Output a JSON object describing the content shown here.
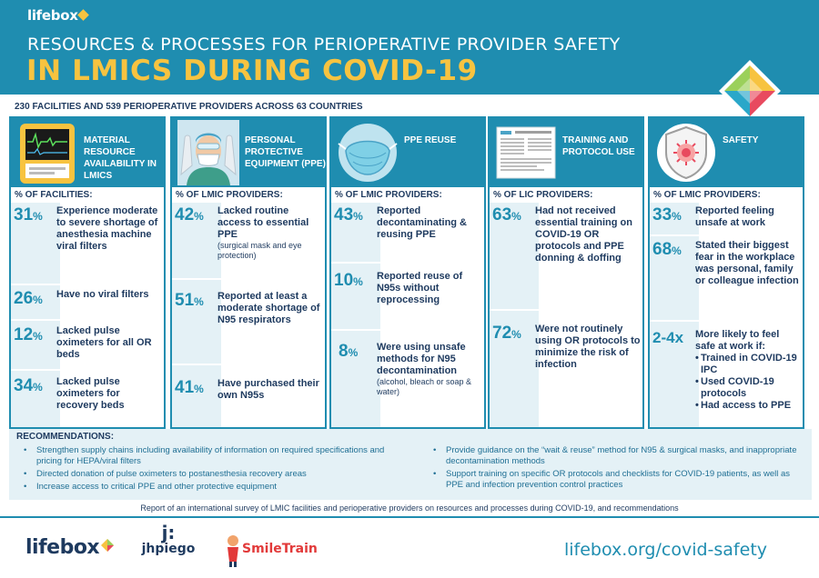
{
  "header": {
    "logo": "lifebox",
    "title_line1": "RESOURCES & PROCESSES FOR PERIOPERATIVE PROVIDER SAFETY",
    "title_line2": "IN LMICS DURING COVID-19"
  },
  "subheading": "230 FACILITIES AND 539 PERIOPERATIVE PROVIDERS ACROSS 63 COUNTRIES",
  "columns": [
    {
      "title": "MATERIAL RESOURCE AVAILABILITY IN LMICS",
      "image": "anesthesia-machine-monitor-icon",
      "metric_label": "% OF FACILITIES:",
      "stats": [
        {
          "pct": "31",
          "text": "Experience moderate to severe shortage of anesthesia machine viral filters"
        },
        {
          "pct": "26",
          "text": "Have no viral filters"
        },
        {
          "pct": "12",
          "text": "Lacked pulse oximeters for all OR beds"
        },
        {
          "pct": "34",
          "text": "Lacked pulse oximeters for recovery beds"
        }
      ]
    },
    {
      "title": "PERSONAL PROTECTIVE EQUIPMENT (PPE)",
      "image": "provider-in-ppe-icon",
      "metric_label": "% OF LMIC PROVIDERS:",
      "stats": [
        {
          "pct": "42",
          "text": "Lacked routine access to essential PPE",
          "note": "(surgical mask and eye protection)"
        },
        {
          "pct": "51",
          "text": "Reported at least a moderate shortage of N95 respirators"
        },
        {
          "pct": "41",
          "text": "Have purchased their own N95s"
        }
      ]
    },
    {
      "title": "PPE REUSE",
      "image": "n95-mask-icon",
      "metric_label": "% OF LMIC PROVIDERS:",
      "stats": [
        {
          "pct": "43",
          "text": "Reported decontaminating & reusing PPE"
        },
        {
          "pct": "10",
          "text": "Reported reuse of N95s without reprocessing"
        },
        {
          "pct": "8",
          "text": "Were using unsafe methods for N95 decontamination",
          "note": "(alcohol, bleach or soap & water)"
        }
      ]
    },
    {
      "title": "TRAINING AND PROTOCOL USE",
      "image": "protocol-document-icon",
      "metric_label": "% OF LIC PROVIDERS:",
      "stats": [
        {
          "pct": "63",
          "text": "Had not received essential training on COVID-19 OR protocols and PPE donning & doffing"
        },
        {
          "pct": "72",
          "text": "Were not routinely using OR protocols to minimize the risk of infection"
        }
      ]
    },
    {
      "title": "SAFETY",
      "image": "virus-shield-icon",
      "metric_label": "% OF LMIC PROVIDERS:",
      "stats": [
        {
          "pct": "33",
          "text": "Reported feeling unsafe at work"
        },
        {
          "pct": "68",
          "text": "Stated their biggest fear in the workplace was personal, family or colleague infection"
        },
        {
          "pct": "2-4x",
          "text": "More likely to feel safe at work if:",
          "bullets": [
            "Trained in COVID-19 IPC",
            "Used COVID-19 protocols",
            "Had access to PPE"
          ]
        }
      ]
    }
  ],
  "recommendations": {
    "title": "RECOMMENDATIONS:",
    "left": [
      "Strengthen supply chains including availability of information on required specifications and pricing for HEPA/viral filters",
      "Directed donation of pulse oximeters to postanesthesia recovery areas",
      "Increase access to critical PPE and other protective equipment"
    ],
    "right": [
      "Provide guidance on the “wait & reuse” method for N95 & surgical masks, and inappropriate decontamination methods",
      "Support training on specific OR protocols and checklists for COVID-19 patients, as well as PPE and infection prevention control practices"
    ]
  },
  "report_note": "Report of an international survey of LMIC facilities and perioperative providers on resources and processes during COVID-19, and recommendations",
  "footer": {
    "logo_lifebox": "lifebox",
    "logo_jhpiego_mark": "j:",
    "logo_jhpiego": "jhpiego",
    "logo_smiletrain": "SmileTrain",
    "url": "lifebox.org/covid-safety"
  },
  "colors": {
    "header_blue": "#1f8db0",
    "accent_yellow": "#f7c340",
    "navy_text": "#1e3a5f",
    "light_panel": "#e4f1f6"
  }
}
